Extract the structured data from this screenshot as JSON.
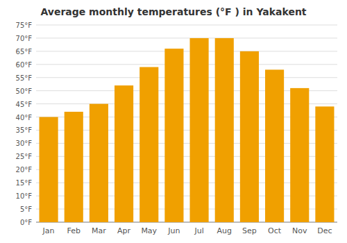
{
  "chart_data": {
    "type": "bar",
    "title": "Average monthly temperatures (°F ) in Yakakent",
    "categories": [
      "Jan",
      "Feb",
      "Mar",
      "Apr",
      "May",
      "Jun",
      "Jul",
      "Aug",
      "Sep",
      "Oct",
      "Nov",
      "Dec"
    ],
    "values": [
      40,
      42,
      45,
      52,
      59,
      66,
      70,
      70,
      65,
      58,
      51,
      44
    ],
    "color": "#F0A000",
    "ylim": [
      0,
      75
    ],
    "yticks": [
      {
        "value": 0,
        "label": "0°F"
      },
      {
        "value": 5,
        "label": "5°F"
      },
      {
        "value": 10,
        "label": "10°F"
      },
      {
        "value": 15,
        "label": "15°F"
      },
      {
        "value": 20,
        "label": "20°F"
      },
      {
        "value": 25,
        "label": "25°F"
      },
      {
        "value": 30,
        "label": "30°F"
      },
      {
        "value": 35,
        "label": "35°F"
      },
      {
        "value": 40,
        "label": "40°F"
      },
      {
        "value": 45,
        "label": "45°F"
      },
      {
        "value": 50,
        "label": "50°F"
      },
      {
        "value": 55,
        "label": "55°F"
      },
      {
        "value": 60,
        "label": "60°F"
      },
      {
        "value": 65,
        "label": "65°F"
      },
      {
        "value": 70,
        "label": "70°F"
      },
      {
        "value": 75,
        "label": "75°F"
      }
    ],
    "grid": true
  }
}
